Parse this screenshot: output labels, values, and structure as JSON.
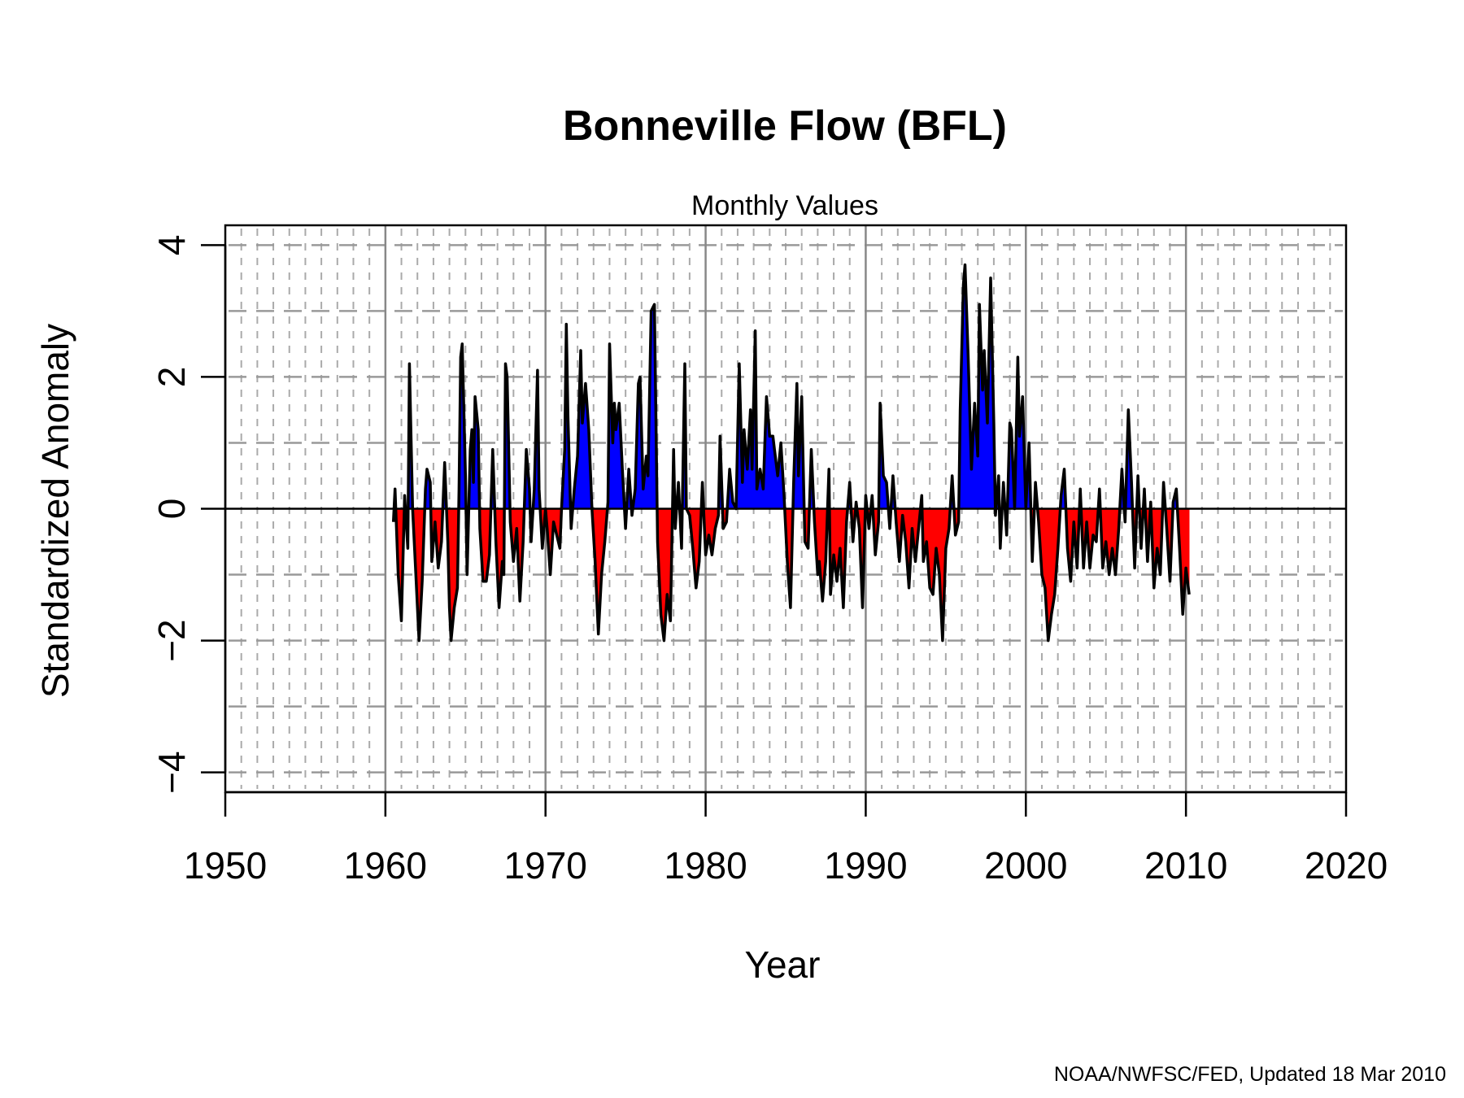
{
  "chart_data": {
    "type": "area",
    "title": "Bonneville Flow (BFL)",
    "subtitle": "Monthly Values",
    "xlabel": "Year",
    "ylabel": "Standardized Anomaly",
    "credit": "NOAA/NWFSC/FED, Updated  18 Mar 2010",
    "xlim": [
      1950,
      2020
    ],
    "ylim": [
      -4.3,
      4.3
    ],
    "x_ticks": [
      1950,
      1960,
      1970,
      1980,
      1990,
      2000,
      2010,
      2020
    ],
    "x_tick_labels": [
      "1950",
      "1960",
      "1970",
      "1980",
      "1990",
      "2000",
      "2010",
      "2020"
    ],
    "y_ticks": [
      -4,
      -2,
      0,
      2,
      4
    ],
    "y_tick_labels": [
      "−4",
      "−2",
      "0",
      "2",
      "4"
    ],
    "grid": true,
    "colors": {
      "positive": "#0000ff",
      "negative": "#ff0000",
      "line": "#000000",
      "grid": "#999999"
    },
    "series": [
      {
        "name": "",
        "points": [
          [
            1960.5,
            -0.2
          ],
          [
            1960.6,
            0.3
          ],
          [
            1960.8,
            -1.0
          ],
          [
            1961.0,
            -1.7
          ],
          [
            1961.2,
            0.2
          ],
          [
            1961.4,
            -0.6
          ],
          [
            1961.5,
            2.2
          ],
          [
            1961.7,
            0.0
          ],
          [
            1961.9,
            -1.0
          ],
          [
            1962.1,
            -2.0
          ],
          [
            1962.3,
            -1.1
          ],
          [
            1962.5,
            0.3
          ],
          [
            1962.6,
            0.6
          ],
          [
            1962.8,
            0.4
          ],
          [
            1962.9,
            -0.8
          ],
          [
            1963.1,
            -0.2
          ],
          [
            1963.3,
            -0.9
          ],
          [
            1963.5,
            -0.5
          ],
          [
            1963.7,
            0.7
          ],
          [
            1963.9,
            -0.5
          ],
          [
            1964.0,
            -1.5
          ],
          [
            1964.1,
            -2.0
          ],
          [
            1964.3,
            -1.5
          ],
          [
            1964.5,
            -1.2
          ],
          [
            1964.6,
            0.3
          ],
          [
            1964.7,
            2.3
          ],
          [
            1964.8,
            2.5
          ],
          [
            1965.0,
            0.5
          ],
          [
            1965.1,
            -1.0
          ],
          [
            1965.3,
            0.9
          ],
          [
            1965.4,
            1.2
          ],
          [
            1965.5,
            0.4
          ],
          [
            1965.6,
            1.7
          ],
          [
            1965.8,
            1.2
          ],
          [
            1965.9,
            -0.3
          ],
          [
            1966.1,
            -1.1
          ],
          [
            1966.3,
            -1.1
          ],
          [
            1966.5,
            -0.7
          ],
          [
            1966.7,
            0.9
          ],
          [
            1966.9,
            -0.5
          ],
          [
            1967.1,
            -1.5
          ],
          [
            1967.3,
            -0.8
          ],
          [
            1967.4,
            -1.0
          ],
          [
            1967.5,
            2.2
          ],
          [
            1967.6,
            2.0
          ],
          [
            1967.8,
            -0.2
          ],
          [
            1968.0,
            -0.8
          ],
          [
            1968.2,
            -0.3
          ],
          [
            1968.4,
            -1.4
          ],
          [
            1968.6,
            -0.5
          ],
          [
            1968.8,
            0.9
          ],
          [
            1969.0,
            0.3
          ],
          [
            1969.1,
            -0.5
          ],
          [
            1969.3,
            0.3
          ],
          [
            1969.5,
            2.1
          ],
          [
            1969.6,
            0.3
          ],
          [
            1969.8,
            -0.6
          ],
          [
            1970.0,
            0.0
          ],
          [
            1970.1,
            -0.3
          ],
          [
            1970.3,
            -1.0
          ],
          [
            1970.5,
            -0.2
          ],
          [
            1970.7,
            -0.4
          ],
          [
            1970.9,
            -0.6
          ],
          [
            1971.0,
            0.0
          ],
          [
            1971.2,
            0.9
          ],
          [
            1971.3,
            2.8
          ],
          [
            1971.4,
            1.4
          ],
          [
            1971.6,
            -0.3
          ],
          [
            1971.8,
            0.3
          ],
          [
            1972.0,
            0.8
          ],
          [
            1972.2,
            2.4
          ],
          [
            1972.3,
            1.3
          ],
          [
            1972.5,
            1.9
          ],
          [
            1972.7,
            1.2
          ],
          [
            1972.9,
            0.0
          ],
          [
            1973.1,
            -0.8
          ],
          [
            1973.3,
            -1.9
          ],
          [
            1973.5,
            -1.0
          ],
          [
            1973.7,
            -0.5
          ],
          [
            1973.9,
            0.1
          ],
          [
            1974.0,
            2.5
          ],
          [
            1974.2,
            1.0
          ],
          [
            1974.3,
            1.6
          ],
          [
            1974.4,
            1.2
          ],
          [
            1974.6,
            1.6
          ],
          [
            1974.8,
            0.6
          ],
          [
            1975.0,
            -0.3
          ],
          [
            1975.2,
            0.6
          ],
          [
            1975.4,
            -0.1
          ],
          [
            1975.6,
            0.3
          ],
          [
            1975.8,
            1.9
          ],
          [
            1975.9,
            2.0
          ],
          [
            1976.1,
            0.3
          ],
          [
            1976.3,
            0.8
          ],
          [
            1976.4,
            0.5
          ],
          [
            1976.6,
            3.0
          ],
          [
            1976.8,
            3.1
          ],
          [
            1977.0,
            -0.5
          ],
          [
            1977.2,
            -1.6
          ],
          [
            1977.4,
            -2.0
          ],
          [
            1977.6,
            -1.3
          ],
          [
            1977.8,
            -1.7
          ],
          [
            1978.0,
            0.9
          ],
          [
            1978.1,
            -0.3
          ],
          [
            1978.3,
            0.4
          ],
          [
            1978.5,
            -0.6
          ],
          [
            1978.7,
            2.2
          ],
          [
            1978.8,
            0.0
          ],
          [
            1979.0,
            -0.1
          ],
          [
            1979.2,
            -0.6
          ],
          [
            1979.4,
            -1.2
          ],
          [
            1979.6,
            -0.8
          ],
          [
            1979.8,
            0.4
          ],
          [
            1980.0,
            -0.7
          ],
          [
            1980.2,
            -0.4
          ],
          [
            1980.4,
            -0.7
          ],
          [
            1980.6,
            -0.3
          ],
          [
            1980.8,
            -0.1
          ],
          [
            1980.9,
            1.1
          ],
          [
            1981.1,
            -0.3
          ],
          [
            1981.3,
            -0.2
          ],
          [
            1981.5,
            0.6
          ],
          [
            1981.7,
            0.1
          ],
          [
            1981.9,
            0.0
          ],
          [
            1982.1,
            2.2
          ],
          [
            1982.3,
            0.4
          ],
          [
            1982.4,
            1.2
          ],
          [
            1982.6,
            0.6
          ],
          [
            1982.8,
            1.5
          ],
          [
            1982.9,
            0.6
          ],
          [
            1983.1,
            2.7
          ],
          [
            1983.2,
            0.3
          ],
          [
            1983.4,
            0.6
          ],
          [
            1983.6,
            0.3
          ],
          [
            1983.8,
            1.7
          ],
          [
            1984.0,
            1.1
          ],
          [
            1984.2,
            1.1
          ],
          [
            1984.3,
            0.9
          ],
          [
            1984.5,
            0.5
          ],
          [
            1984.7,
            1.0
          ],
          [
            1984.9,
            0.2
          ],
          [
            1985.1,
            -0.8
          ],
          [
            1985.3,
            -1.5
          ],
          [
            1985.5,
            0.4
          ],
          [
            1985.7,
            1.9
          ],
          [
            1985.8,
            0.5
          ],
          [
            1986.0,
            1.7
          ],
          [
            1986.2,
            -0.5
          ],
          [
            1986.4,
            -0.6
          ],
          [
            1986.6,
            0.9
          ],
          [
            1986.8,
            -0.2
          ],
          [
            1987.0,
            -1.0
          ],
          [
            1987.1,
            -0.8
          ],
          [
            1987.3,
            -1.4
          ],
          [
            1987.5,
            -0.8
          ],
          [
            1987.7,
            0.6
          ],
          [
            1987.8,
            -1.3
          ],
          [
            1988.0,
            -0.7
          ],
          [
            1988.2,
            -1.1
          ],
          [
            1988.4,
            -0.6
          ],
          [
            1988.6,
            -1.5
          ],
          [
            1988.8,
            -0.2
          ],
          [
            1989.0,
            0.4
          ],
          [
            1989.2,
            -0.5
          ],
          [
            1989.4,
            0.1
          ],
          [
            1989.6,
            -0.3
          ],
          [
            1989.8,
            -1.5
          ],
          [
            1990.0,
            0.2
          ],
          [
            1990.2,
            -0.3
          ],
          [
            1990.4,
            0.2
          ],
          [
            1990.6,
            -0.7
          ],
          [
            1990.8,
            -0.2
          ],
          [
            1990.9,
            1.6
          ],
          [
            1991.1,
            0.5
          ],
          [
            1991.3,
            0.4
          ],
          [
            1991.5,
            -0.3
          ],
          [
            1991.7,
            0.5
          ],
          [
            1991.9,
            -0.2
          ],
          [
            1992.1,
            -0.8
          ],
          [
            1992.3,
            -0.1
          ],
          [
            1992.5,
            -0.5
          ],
          [
            1992.7,
            -1.2
          ],
          [
            1992.9,
            -0.3
          ],
          [
            1993.1,
            -0.8
          ],
          [
            1993.3,
            -0.3
          ],
          [
            1993.5,
            0.2
          ],
          [
            1993.6,
            -0.8
          ],
          [
            1993.8,
            -0.5
          ],
          [
            1994.0,
            -1.2
          ],
          [
            1994.2,
            -1.3
          ],
          [
            1994.4,
            -0.6
          ],
          [
            1994.6,
            -1.0
          ],
          [
            1994.8,
            -2.0
          ],
          [
            1995.0,
            -0.6
          ],
          [
            1995.2,
            -0.3
          ],
          [
            1995.4,
            0.5
          ],
          [
            1995.6,
            -0.4
          ],
          [
            1995.8,
            -0.2
          ],
          [
            1995.9,
            1.5
          ],
          [
            1996.1,
            3.4
          ],
          [
            1996.2,
            3.7
          ],
          [
            1996.4,
            2.3
          ],
          [
            1996.6,
            0.6
          ],
          [
            1996.8,
            1.6
          ],
          [
            1997.0,
            0.8
          ],
          [
            1997.1,
            3.1
          ],
          [
            1997.3,
            1.8
          ],
          [
            1997.4,
            2.4
          ],
          [
            1997.6,
            1.3
          ],
          [
            1997.8,
            3.5
          ],
          [
            1998.0,
            1.3
          ],
          [
            1998.1,
            -0.1
          ],
          [
            1998.3,
            0.5
          ],
          [
            1998.4,
            -0.6
          ],
          [
            1998.6,
            0.4
          ],
          [
            1998.8,
            -0.4
          ],
          [
            1999.0,
            1.3
          ],
          [
            1999.1,
            1.2
          ],
          [
            1999.3,
            0.0
          ],
          [
            1999.5,
            2.3
          ],
          [
            1999.6,
            1.1
          ],
          [
            1999.8,
            1.7
          ],
          [
            2000.0,
            0.0
          ],
          [
            2000.2,
            1.0
          ],
          [
            2000.4,
            -0.8
          ],
          [
            2000.6,
            0.4
          ],
          [
            2000.8,
            -0.2
          ],
          [
            2001.0,
            -1.0
          ],
          [
            2001.2,
            -1.2
          ],
          [
            2001.4,
            -2.0
          ],
          [
            2001.6,
            -1.6
          ],
          [
            2001.8,
            -1.3
          ],
          [
            2002.0,
            -0.6
          ],
          [
            2002.2,
            0.2
          ],
          [
            2002.4,
            0.6
          ],
          [
            2002.6,
            -0.6
          ],
          [
            2002.8,
            -1.1
          ],
          [
            2003.0,
            -0.2
          ],
          [
            2003.2,
            -0.9
          ],
          [
            2003.4,
            0.3
          ],
          [
            2003.6,
            -0.9
          ],
          [
            2003.8,
            -0.2
          ],
          [
            2004.0,
            -0.9
          ],
          [
            2004.2,
            -0.4
          ],
          [
            2004.4,
            -0.5
          ],
          [
            2004.6,
            0.3
          ],
          [
            2004.8,
            -0.9
          ],
          [
            2005.0,
            -0.5
          ],
          [
            2005.2,
            -1.0
          ],
          [
            2005.4,
            -0.6
          ],
          [
            2005.6,
            -1.0
          ],
          [
            2005.8,
            -0.3
          ],
          [
            2006.0,
            0.6
          ],
          [
            2006.2,
            -0.2
          ],
          [
            2006.4,
            1.5
          ],
          [
            2006.6,
            0.4
          ],
          [
            2006.8,
            -0.9
          ],
          [
            2007.0,
            0.5
          ],
          [
            2007.2,
            -0.6
          ],
          [
            2007.4,
            0.3
          ],
          [
            2007.6,
            -0.8
          ],
          [
            2007.8,
            0.1
          ],
          [
            2008.0,
            -1.2
          ],
          [
            2008.2,
            -0.6
          ],
          [
            2008.4,
            -1.0
          ],
          [
            2008.6,
            0.4
          ],
          [
            2008.8,
            -0.3
          ],
          [
            2009.0,
            -1.1
          ],
          [
            2009.2,
            0.1
          ],
          [
            2009.4,
            0.3
          ],
          [
            2009.6,
            -0.6
          ],
          [
            2009.8,
            -1.6
          ],
          [
            2010.0,
            -0.9
          ],
          [
            2010.2,
            -1.3
          ]
        ]
      }
    ]
  }
}
